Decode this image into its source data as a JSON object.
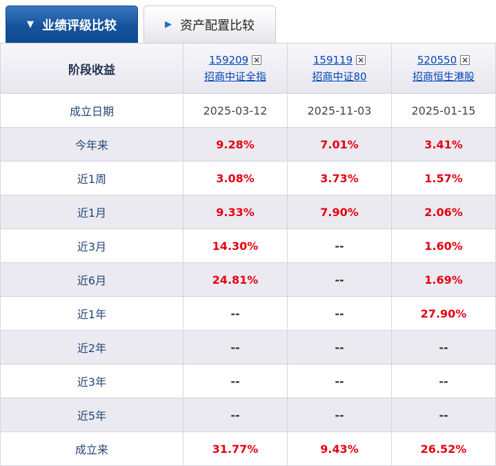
{
  "tabs": [
    {
      "label": "业绩评级比较",
      "active": true,
      "icon": "triangle-down"
    },
    {
      "label": "资产配置比较",
      "active": false,
      "icon": "triangle-right"
    }
  ],
  "icons": {
    "triangle_down": "▼",
    "triangle_right": "▶",
    "close": "×"
  },
  "table": {
    "corner_label": "阶段收益",
    "funds": [
      {
        "code": "159209",
        "name": "招商中证全指"
      },
      {
        "code": "159119",
        "name": "招商中证80"
      },
      {
        "code": "520550",
        "name": "招商恒生港股"
      }
    ],
    "rows": [
      {
        "label": "成立日期",
        "kind": "date",
        "values": [
          "2025-03-12",
          "2025-11-03",
          "2025-01-15"
        ]
      },
      {
        "label": "今年来",
        "kind": "pct",
        "values": [
          "9.28%",
          "7.01%",
          "3.41%"
        ]
      },
      {
        "label": "近1周",
        "kind": "pct",
        "values": [
          "3.08%",
          "3.73%",
          "1.57%"
        ]
      },
      {
        "label": "近1月",
        "kind": "pct",
        "values": [
          "9.33%",
          "7.90%",
          "2.06%"
        ]
      },
      {
        "label": "近3月",
        "kind": "pct",
        "values": [
          "14.30%",
          "--",
          "1.60%"
        ]
      },
      {
        "label": "近6月",
        "kind": "pct",
        "values": [
          "24.81%",
          "--",
          "1.69%"
        ]
      },
      {
        "label": "近1年",
        "kind": "pct",
        "values": [
          "--",
          "--",
          "27.90%"
        ]
      },
      {
        "label": "近2年",
        "kind": "pct",
        "values": [
          "--",
          "--",
          "--"
        ]
      },
      {
        "label": "近3年",
        "kind": "pct",
        "values": [
          "--",
          "--",
          "--"
        ]
      },
      {
        "label": "近5年",
        "kind": "pct",
        "values": [
          "--",
          "--",
          "--"
        ]
      },
      {
        "label": "成立来",
        "kind": "pct",
        "values": [
          "31.77%",
          "9.43%",
          "26.52%"
        ]
      }
    ],
    "colors": {
      "positive_value": "#e60012",
      "link": "#0046bb",
      "active_tab": "#15549c"
    }
  }
}
